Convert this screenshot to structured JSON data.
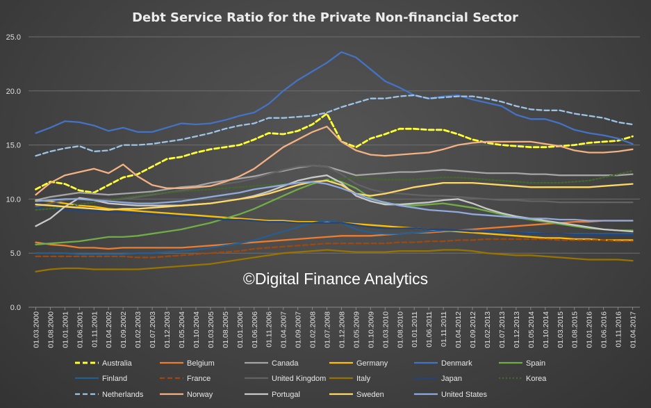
{
  "chart_data": {
    "type": "line",
    "title": "Debt Service Ratio for the Private Non-financial Sector",
    "xlabel": "",
    "ylabel": "",
    "ylim": [
      0,
      25
    ],
    "yticks": [
      "0.0",
      "5.0",
      "10.0",
      "15.0",
      "20.0",
      "25.0"
    ],
    "grid": true,
    "legend_position": "bottom",
    "watermark": "©Digital Finance Analytics",
    "categories": [
      "01.03.2000",
      "01.08.2000",
      "01.01.2001",
      "01.06.2001",
      "01.11.2001",
      "01.04.2002",
      "01.09.2002",
      "01.02.2003",
      "01.07.2003",
      "01.12.2003",
      "01.05.2004",
      "01.10.2004",
      "01.03.2005",
      "01.08.2005",
      "01.01.2006",
      "01.06.2006",
      "01.11.2006",
      "01.04.2007",
      "01.09.2007",
      "01.02.2008",
      "01.07.2008",
      "01.12.2008",
      "01.05.2009",
      "01.10.2009",
      "01.03.2010",
      "01.08.2010",
      "01.01.2011",
      "01.06.2011",
      "01.11.2011",
      "01.04.2012",
      "01.09.2012",
      "01.02.2013",
      "01.07.2013",
      "01.12.2013",
      "01.05.2014",
      "01.10.2014",
      "01.03.2015",
      "01.08.2015",
      "01.01.2016",
      "01.06.2016",
      "01.11.2016",
      "01.04.2017"
    ],
    "series": [
      {
        "name": "Australia",
        "color": "#ffff33",
        "dash": "dashed",
        "values": [
          10.9,
          11.6,
          11.4,
          10.8,
          10.6,
          11.3,
          12.0,
          12.3,
          13.0,
          13.7,
          13.9,
          14.3,
          14.6,
          14.8,
          15.0,
          15.5,
          16.1,
          16.0,
          16.3,
          16.9,
          17.9,
          15.3,
          14.8,
          15.6,
          16.0,
          16.5,
          16.5,
          16.4,
          16.4,
          16.0,
          15.5,
          15.2,
          15.0,
          14.9,
          14.8,
          14.8,
          14.9,
          15.0,
          15.2,
          15.3,
          15.4,
          15.8
        ]
      },
      {
        "name": "Belgium",
        "color": "#ed7d31",
        "dash": "solid",
        "values": [
          6.0,
          5.8,
          5.7,
          5.5,
          5.5,
          5.4,
          5.5,
          5.5,
          5.5,
          5.5,
          5.5,
          5.6,
          5.7,
          5.8,
          5.9,
          6.0,
          6.1,
          6.2,
          6.3,
          6.4,
          6.5,
          6.6,
          6.6,
          6.6,
          6.7,
          6.8,
          6.9,
          6.9,
          7.0,
          7.1,
          7.2,
          7.3,
          7.4,
          7.5,
          7.6,
          7.7,
          7.8,
          7.9,
          7.9,
          8.0,
          8.0,
          8.0
        ]
      },
      {
        "name": "Canada",
        "color": "#a5a5a5",
        "dash": "solid",
        "values": [
          9.9,
          10.2,
          10.4,
          10.6,
          10.5,
          10.4,
          10.5,
          10.6,
          10.7,
          10.9,
          11.1,
          11.2,
          11.5,
          11.7,
          11.9,
          12.1,
          12.4,
          12.6,
          12.9,
          13.1,
          13.0,
          12.6,
          12.2,
          12.3,
          12.4,
          12.5,
          12.5,
          12.6,
          12.7,
          12.6,
          12.5,
          12.4,
          12.4,
          12.4,
          12.3,
          12.3,
          12.2,
          12.2,
          12.2,
          12.2,
          12.2,
          12.3
        ]
      },
      {
        "name": "Germany",
        "color": "#ffc000",
        "dash": "solid",
        "values": [
          9.9,
          9.8,
          9.6,
          9.4,
          9.3,
          9.1,
          9.0,
          8.9,
          8.8,
          8.7,
          8.6,
          8.5,
          8.4,
          8.3,
          8.2,
          8.1,
          8.0,
          8.0,
          7.9,
          7.9,
          7.9,
          7.8,
          7.7,
          7.6,
          7.5,
          7.4,
          7.3,
          7.2,
          7.1,
          7.0,
          6.9,
          6.8,
          6.7,
          6.6,
          6.5,
          6.4,
          6.4,
          6.3,
          6.3,
          6.2,
          6.2,
          6.2
        ]
      },
      {
        "name": "Denmark",
        "color": "#4472c4",
        "dash": "solid",
        "values": [
          16.1,
          16.6,
          17.2,
          17.1,
          16.8,
          16.3,
          16.6,
          16.2,
          16.2,
          16.6,
          17.0,
          16.9,
          17.0,
          17.3,
          17.7,
          18.0,
          18.8,
          20.0,
          21.0,
          21.8,
          22.6,
          23.6,
          23.1,
          22.0,
          20.9,
          20.3,
          19.6,
          19.3,
          19.5,
          19.6,
          19.2,
          18.9,
          18.6,
          17.8,
          17.4,
          17.4,
          17.0,
          16.4,
          16.1,
          15.9,
          15.6,
          15.1
        ]
      },
      {
        "name": "Spain",
        "color": "#70ad47",
        "dash": "solid",
        "values": [
          5.8,
          5.9,
          6.0,
          6.1,
          6.3,
          6.5,
          6.5,
          6.6,
          6.8,
          7.0,
          7.2,
          7.5,
          7.8,
          8.2,
          8.6,
          9.1,
          9.7,
          10.3,
          10.9,
          11.4,
          11.8,
          11.6,
          11.0,
          10.1,
          9.6,
          9.5,
          9.4,
          9.5,
          9.6,
          9.4,
          9.2,
          8.9,
          8.6,
          8.3,
          8.1,
          7.9,
          7.7,
          7.5,
          7.3,
          7.2,
          7.1,
          7.1
        ]
      },
      {
        "name": "Finland",
        "color": "#255e91",
        "dash": "solid",
        "values": [
          5.0,
          5.0,
          5.0,
          4.9,
          4.9,
          4.9,
          4.9,
          5.0,
          5.0,
          5.1,
          5.2,
          5.3,
          5.5,
          5.7,
          5.9,
          6.2,
          6.6,
          7.0,
          7.4,
          7.8,
          8.0,
          7.8,
          7.2,
          6.9,
          6.8,
          6.8,
          6.9,
          7.0,
          7.1,
          7.1,
          7.1,
          7.0,
          7.0,
          6.9,
          6.9,
          6.8,
          6.8,
          6.8,
          6.8,
          6.8,
          6.8,
          6.8
        ]
      },
      {
        "name": "France",
        "color": "#9e480e",
        "dash": "dashed",
        "values": [
          4.7,
          4.7,
          4.7,
          4.7,
          4.7,
          4.7,
          4.7,
          4.6,
          4.6,
          4.7,
          4.8,
          4.9,
          5.0,
          5.1,
          5.2,
          5.4,
          5.5,
          5.6,
          5.7,
          5.8,
          5.9,
          5.9,
          5.9,
          5.9,
          5.9,
          6.0,
          6.0,
          6.1,
          6.1,
          6.2,
          6.2,
          6.3,
          6.3,
          6.3,
          6.3,
          6.3,
          6.2,
          6.2,
          6.2,
          6.2,
          6.1,
          6.1
        ]
      },
      {
        "name": "United Kingdom",
        "color": "#636363",
        "dash": "solid",
        "values": [
          9.3,
          9.6,
          9.9,
          10.1,
          10.0,
          9.9,
          10.0,
          10.2,
          10.4,
          10.6,
          10.8,
          11.0,
          11.2,
          11.4,
          11.6,
          11.9,
          12.3,
          12.7,
          13.0,
          13.1,
          13.0,
          12.3,
          11.4,
          10.9,
          10.6,
          10.5,
          10.4,
          10.3,
          10.3,
          10.2,
          10.1,
          10.0,
          9.9,
          9.9,
          9.8,
          9.8,
          9.7,
          9.7,
          9.7,
          9.7,
          9.7,
          9.7
        ]
      },
      {
        "name": "Italy",
        "color": "#997300",
        "dash": "solid",
        "values": [
          3.3,
          3.5,
          3.6,
          3.6,
          3.5,
          3.5,
          3.5,
          3.5,
          3.6,
          3.7,
          3.8,
          3.9,
          4.0,
          4.2,
          4.4,
          4.6,
          4.8,
          5.0,
          5.1,
          5.2,
          5.3,
          5.2,
          5.1,
          5.1,
          5.1,
          5.2,
          5.2,
          5.2,
          5.3,
          5.3,
          5.2,
          5.0,
          4.9,
          4.8,
          4.8,
          4.7,
          4.6,
          4.5,
          4.4,
          4.4,
          4.4,
          4.3
        ]
      },
      {
        "name": "Japan",
        "color": "#264478",
        "dash": "solid",
        "values": [
          9.2,
          9.1,
          9.0,
          8.9,
          8.9,
          8.8,
          8.8,
          8.7,
          8.6,
          8.5,
          8.4,
          8.3,
          8.2,
          8.1,
          8.1,
          8.0,
          7.9,
          7.9,
          7.8,
          7.8,
          7.8,
          7.8,
          7.6,
          7.4,
          7.3,
          7.3,
          7.3,
          7.2,
          7.2,
          7.1,
          7.0,
          7.0,
          6.9,
          6.9,
          6.8,
          6.8,
          6.8,
          6.7,
          6.7,
          6.7,
          6.7,
          6.7
        ]
      },
      {
        "name": "Korea",
        "color": "#43682b",
        "dash": "dotted",
        "values": [
          9.0,
          9.1,
          9.3,
          9.5,
          9.7,
          9.9,
          10.1,
          10.3,
          10.5,
          10.6,
          10.7,
          10.8,
          10.9,
          11.0,
          11.1,
          11.2,
          11.3,
          11.4,
          11.5,
          11.6,
          11.7,
          11.9,
          12.0,
          11.9,
          11.8,
          11.8,
          11.8,
          11.9,
          12.0,
          12.0,
          11.9,
          11.8,
          11.7,
          11.6,
          11.5,
          11.5,
          11.5,
          11.6,
          11.7,
          12.0,
          12.3,
          12.6
        ]
      },
      {
        "name": "Netherlands",
        "color": "#9dc3e6",
        "dash": "dashed",
        "values": [
          14.0,
          14.4,
          14.7,
          14.9,
          14.4,
          14.5,
          15.0,
          15.0,
          15.1,
          15.3,
          15.5,
          15.8,
          16.1,
          16.5,
          16.8,
          17.0,
          17.5,
          17.5,
          17.6,
          17.7,
          18.0,
          18.5,
          18.9,
          19.3,
          19.3,
          19.5,
          19.6,
          19.3,
          19.4,
          19.5,
          19.5,
          19.3,
          19.0,
          18.6,
          18.3,
          18.2,
          18.2,
          17.9,
          17.7,
          17.5,
          17.1,
          16.9
        ]
      },
      {
        "name": "Norway",
        "color": "#f4b183",
        "dash": "solid",
        "values": [
          10.4,
          11.5,
          12.2,
          12.5,
          12.8,
          12.4,
          13.2,
          12.1,
          11.3,
          11.0,
          11.0,
          11.1,
          11.2,
          11.6,
          12.1,
          12.8,
          13.8,
          14.8,
          15.5,
          16.2,
          16.7,
          15.3,
          14.5,
          14.1,
          14.0,
          14.1,
          14.2,
          14.3,
          14.6,
          15.0,
          15.2,
          15.3,
          15.3,
          15.3,
          15.3,
          15.1,
          14.9,
          14.5,
          14.3,
          14.3,
          14.4,
          14.6
        ]
      },
      {
        "name": "Portugal",
        "color": "#c9c9c9",
        "dash": "solid",
        "values": [
          7.5,
          8.2,
          9.3,
          10.1,
          9.9,
          9.6,
          9.5,
          9.4,
          9.4,
          9.4,
          9.4,
          9.5,
          9.6,
          9.8,
          10.0,
          10.3,
          10.7,
          11.2,
          11.7,
          12.0,
          12.2,
          11.5,
          10.3,
          9.8,
          9.5,
          9.5,
          9.6,
          9.7,
          9.9,
          10.0,
          9.6,
          9.1,
          8.7,
          8.4,
          8.2,
          8.0,
          7.8,
          7.6,
          7.4,
          7.2,
          7.1,
          7.0
        ]
      },
      {
        "name": "Sweden",
        "color": "#ffd966",
        "dash": "solid",
        "values": [
          9.5,
          9.4,
          9.3,
          9.2,
          9.1,
          9.0,
          9.1,
          9.1,
          9.2,
          9.3,
          9.4,
          9.5,
          9.6,
          9.8,
          10.0,
          10.2,
          10.5,
          10.9,
          11.3,
          11.6,
          11.7,
          11.3,
          10.5,
          10.3,
          10.5,
          10.8,
          11.1,
          11.3,
          11.5,
          11.5,
          11.5,
          11.4,
          11.3,
          11.2,
          11.1,
          11.1,
          11.1,
          11.1,
          11.1,
          11.2,
          11.3,
          11.4
        ]
      },
      {
        "name": "United States",
        "color": "#8faadc",
        "dash": "solid",
        "values": [
          9.8,
          9.9,
          10.0,
          10.0,
          9.9,
          9.8,
          9.7,
          9.6,
          9.6,
          9.7,
          9.8,
          10.0,
          10.2,
          10.4,
          10.6,
          10.9,
          11.1,
          11.3,
          11.5,
          11.6,
          11.4,
          11.0,
          10.5,
          10.0,
          9.7,
          9.4,
          9.2,
          9.0,
          8.9,
          8.8,
          8.6,
          8.5,
          8.4,
          8.3,
          8.2,
          8.2,
          8.1,
          8.1,
          8.0,
          8.0,
          8.0,
          8.0
        ]
      }
    ]
  }
}
